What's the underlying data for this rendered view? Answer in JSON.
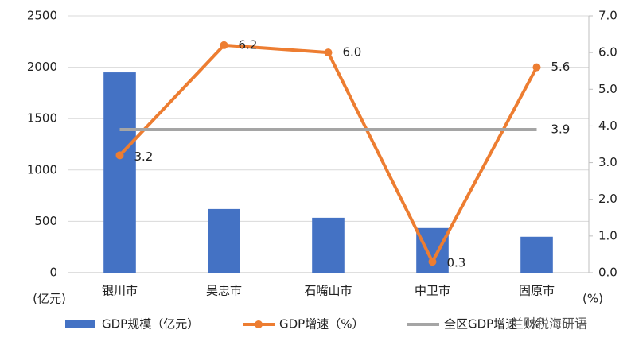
{
  "chart_data": {
    "type": "bar",
    "categories": [
      "银川市",
      "吴忠市",
      "石嘴山市",
      "中卫市",
      "固原市"
    ],
    "series": [
      {
        "name": "GDP规模（亿元）",
        "type": "bar",
        "color": "#4472c4",
        "values": [
          1950,
          620,
          535,
          435,
          350
        ]
      },
      {
        "name": "GDP增速（%）",
        "type": "line",
        "axis": "y2",
        "color": "#ed7d31",
        "markers": true,
        "values": [
          3.2,
          6.2,
          6.0,
          0.3,
          5.6
        ],
        "value_labels": [
          "3.2",
          "6.2",
          "6.0",
          "0.3",
          "5.6"
        ]
      },
      {
        "name": "全区GDP增速（%）",
        "type": "line",
        "axis": "y2",
        "color": "#a5a5a5",
        "markers": false,
        "values": [
          3.9,
          3.9,
          3.9,
          3.9,
          3.9
        ],
        "value_labels": [
          null,
          null,
          null,
          null,
          "3.9"
        ]
      }
    ],
    "ylim": [
      0,
      2500
    ],
    "yticks": [
      0,
      500,
      1000,
      1500,
      2000,
      2500
    ],
    "y2lim": [
      0,
      7
    ],
    "y2ticks": [
      {
        "value": 0,
        "label": "0.0"
      },
      {
        "value": 1,
        "label": "1.0"
      },
      {
        "value": 2,
        "label": "2.0"
      },
      {
        "value": 3,
        "label": "3.0"
      },
      {
        "value": 4,
        "label": "4.0"
      },
      {
        "value": 5,
        "label": "5.0"
      },
      {
        "value": 6,
        "label": "6.0"
      },
      {
        "value": 7,
        "label": "7.0"
      }
    ],
    "y_unit": "(亿元)",
    "y2_unit": "(%)",
    "grid": true,
    "watermark": "兰财税海研语"
  }
}
